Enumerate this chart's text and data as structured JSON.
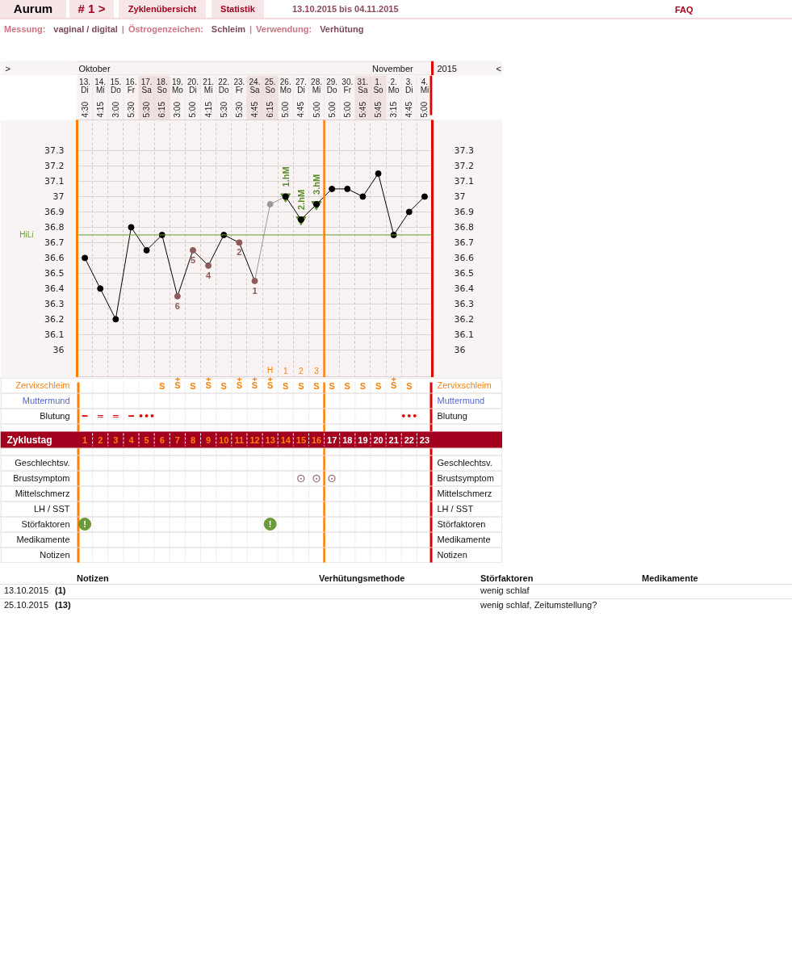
{
  "chart_data": {
    "type": "line",
    "title": "13.10.2015 bis 04.11.2015",
    "subtitle": "Messung: vaginal / digital | Östrogenzeichen: Schleim | Verwendung: Verhütung",
    "x": [
      "2015-10-13",
      "2015-10-14",
      "2015-10-15",
      "2015-10-16",
      "2015-10-17",
      "2015-10-18",
      "2015-10-19",
      "2015-10-20",
      "2015-10-21",
      "2015-10-22",
      "2015-10-23",
      "2015-10-24",
      "2015-10-25",
      "2015-10-26",
      "2015-10-27",
      "2015-10-28",
      "2015-10-29",
      "2015-10-30",
      "2015-10-31",
      "2015-11-01",
      "2015-11-02",
      "2015-11-03",
      "2015-11-04"
    ],
    "xlim": [
      "2015-10-12T12:00",
      "2015-11-04T12:00"
    ],
    "xticks": [
      {
        "value": "2015-10-13",
        "label": "13.\nDi"
      },
      {
        "value": "2015-10-14",
        "label": "14.\nMi"
      },
      {
        "value": "2015-10-15",
        "label": "15.\nDo"
      },
      {
        "value": "2015-10-16",
        "label": "16.\nFr"
      },
      {
        "value": "2015-10-17",
        "label": "17.\nSa"
      },
      {
        "value": "2015-10-18",
        "label": "18.\nSo"
      },
      {
        "value": "2015-10-19",
        "label": "19.\nMo"
      },
      {
        "value": "2015-10-20",
        "label": "20.\nDi"
      },
      {
        "value": "2015-10-21",
        "label": "21.\nMi"
      },
      {
        "value": "2015-10-22",
        "label": "22.\nDo"
      },
      {
        "value": "2015-10-23",
        "label": "23.\nFr"
      },
      {
        "value": "2015-10-24",
        "label": "24.\nSa"
      },
      {
        "value": "2015-10-25",
        "label": "25.\nSo"
      },
      {
        "value": "2015-10-26",
        "label": "26.\nMo"
      },
      {
        "value": "2015-10-27",
        "label": "27.\nDi"
      },
      {
        "value": "2015-10-28",
        "label": "28.\nMi"
      },
      {
        "value": "2015-10-29",
        "label": "29.\nDo"
      },
      {
        "value": "2015-10-30",
        "label": "30.\nFr"
      },
      {
        "value": "2015-10-31",
        "label": "31.\nSa"
      },
      {
        "value": "2015-11-01",
        "label": "1.\nSo"
      },
      {
        "value": "2015-11-02",
        "label": "2.\nMo"
      },
      {
        "value": "2015-11-03",
        "label": "3.\nDi"
      },
      {
        "value": "2015-11-04",
        "label": "4.\nMi"
      }
    ],
    "ylim": [
      35.82,
      37.5
    ],
    "yticks": [
      36,
      36.1,
      36.2,
      36.3,
      36.4,
      36.5,
      36.6,
      36.7,
      36.8,
      36.9,
      37,
      37.1,
      37.2,
      37.3
    ],
    "y2lim": [
      35.82,
      37.5
    ],
    "y2ticks": [
      36,
      36.1,
      36.2,
      36.3,
      36.4,
      36.5,
      36.6,
      36.7,
      36.8,
      36.9,
      37,
      37.1,
      37.2,
      37.3
    ],
    "grid": true,
    "marker": "circle",
    "series": [
      {
        "type": "scatter",
        "marker": "triangle",
        "color": "#5b8c2a",
        "values": [
          null,
          null,
          null,
          null,
          null,
          null,
          null,
          null,
          null,
          null,
          null,
          null,
          null,
          37,
          36.85,
          36.95,
          null,
          null,
          null,
          null,
          null,
          null,
          null
        ]
      },
      {
        "type": "line",
        "marker": "none",
        "color": "#999999",
        "values": [
          null,
          null,
          null,
          null,
          null,
          null,
          null,
          null,
          null,
          null,
          null,
          36.45,
          36.95,
          37,
          null,
          null,
          null,
          null,
          null,
          null,
          null,
          null,
          null
        ]
      },
      {
        "type": "scatter",
        "color": "#999999",
        "values": [
          null,
          null,
          null,
          null,
          null,
          null,
          null,
          null,
          null,
          null,
          null,
          null,
          36.95,
          null,
          null,
          null,
          null,
          null,
          null,
          null,
          null,
          null,
          null
        ]
      },
      {
        "color": "#000000",
        "colors": [
          "#000000",
          "#000000",
          "#000000",
          "#000000",
          "#000000",
          "#000000",
          "#8b5a5a",
          "#8b5a5a",
          "#8b5a5a",
          "#000000",
          "#8b5a5a",
          "#8b5a5a",
          null,
          "#000000",
          "#000000",
          "#000000",
          "#000000",
          "#000000",
          "#000000",
          "#000000",
          "#000000",
          "#000000",
          "#000000"
        ],
        "values": [
          36.6,
          36.4,
          36.2,
          36.8,
          36.65,
          36.75,
          36.35,
          36.65,
          36.55,
          36.75,
          36.7,
          36.45,
          null,
          37,
          36.85,
          36.95,
          37.05,
          37.05,
          37,
          37.15,
          36.75,
          36.9,
          37
        ]
      }
    ],
    "ref_lines": [
      {
        "axis": "y",
        "value": 36.75,
        "label": "HiLi",
        "color": "#6b9e2f"
      },
      {
        "axis": "x",
        "value": "2015-10-28T12:00",
        "color": "#ff8000"
      }
    ],
    "annotations": [
      "Aurum",
      "# 1 >",
      "Zyklenübersicht",
      "Statistik",
      "FAQ",
      ">",
      "<",
      "2015",
      "Oktober",
      "November",
      "4:30",
      "4:15",
      "3:00",
      "5:30",
      "5:30",
      "6:15",
      "3:00",
      "5:00",
      "4:15",
      "5:30",
      "5:30",
      "4:45",
      "6:15",
      "5:00",
      "4:45",
      "5:00",
      "5:00",
      "5:00",
      "5:45",
      "5:45",
      "3:15",
      "4:45",
      "5:00",
      {
        "text": "6",
        "x": "2015-10-19",
        "y": 36.35
      },
      {
        "text": "5",
        "x": "2015-10-20",
        "y": 36.65
      },
      {
        "text": "4",
        "x": "2015-10-21",
        "y": 36.55
      },
      {
        "text": "2",
        "x": "2015-10-23",
        "y": 36.7
      },
      {
        "text": "1",
        "x": "2015-10-24",
        "y": 36.45
      },
      {
        "text": "1.hM",
        "x": "2015-10-26",
        "y": 37
      },
      {
        "text": "2.hM",
        "x": "2015-10-27",
        "y": 36.85
      },
      {
        "text": "3.hM",
        "x": "2015-10-28",
        "y": 36.95
      },
      "H 1 2 3",
      "Zervixschleim",
      "S",
      "+\nS",
      "S",
      "+\nS",
      "S",
      "+\nS",
      "+\nS",
      "+\nS",
      "S",
      "S",
      "S",
      "S",
      "S",
      "S",
      "S",
      "+\nS",
      "S",
      "Muttermund",
      "Blutung",
      "━",
      "═",
      "═",
      "━",
      "•••",
      "•••",
      "Zyklustag",
      "1 2 3 4 5 6 7 8 9 10 11 12 13 14 15 16 17 18 19 20 21 22 23",
      "Geschlechtsv.",
      "Brustsymptom",
      "⊙",
      "⊙",
      "⊙",
      "Mittelschmerz",
      "LH / SST",
      "Störfaktoren",
      "!",
      "!",
      "Medikamente",
      "Notizen",
      "Notizen",
      "Verhütungsmethode",
      "Störfaktoren",
      "Medikamente",
      "13.10.2015",
      "(1)",
      "wenig schlaf",
      "25.10.2015",
      "(13)",
      "wenig schlaf, Zeitumstellung?"
    ]
  }
}
